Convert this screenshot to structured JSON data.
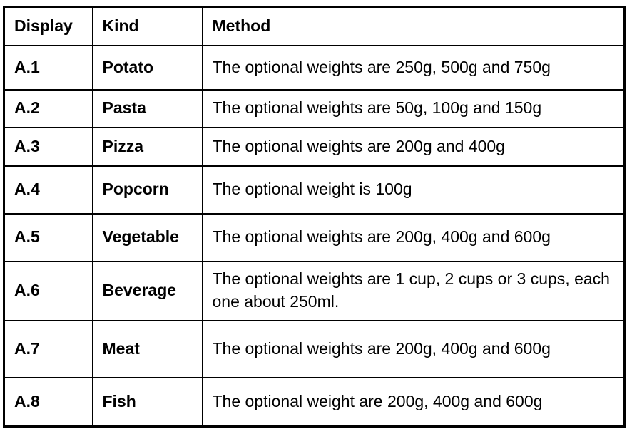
{
  "colors": {
    "border": "#000000",
    "text": "#000000",
    "background": "#ffffff"
  },
  "table": {
    "columns": [
      "Display",
      "Kind",
      "Method"
    ],
    "rows": [
      {
        "display": "A.1",
        "kind": "Potato",
        "method": "The optional weights are 250g, 500g and 750g"
      },
      {
        "display": "A.2",
        "kind": "Pasta",
        "method": "The optional weights are 50g, 100g and 150g"
      },
      {
        "display": "A.3",
        "kind": "Pizza",
        "method": "The optional weights are 200g and 400g"
      },
      {
        "display": "A.4",
        "kind": "Popcorn",
        "method": "The optional weight is 100g"
      },
      {
        "display": "A.5",
        "kind": "Vegetable",
        "method": "The optional weights are 200g, 400g and 600g"
      },
      {
        "display": "A.6",
        "kind": "Beverage",
        "method": "The optional weights are 1 cup, 2 cups or 3 cups, each one about 250ml."
      },
      {
        "display": "A.7",
        "kind": "Meat",
        "method": "The optional weights are 200g, 400g and 600g"
      },
      {
        "display": "A.8",
        "kind": "Fish",
        "method": "The optional weight are 200g, 400g and 600g"
      }
    ]
  }
}
